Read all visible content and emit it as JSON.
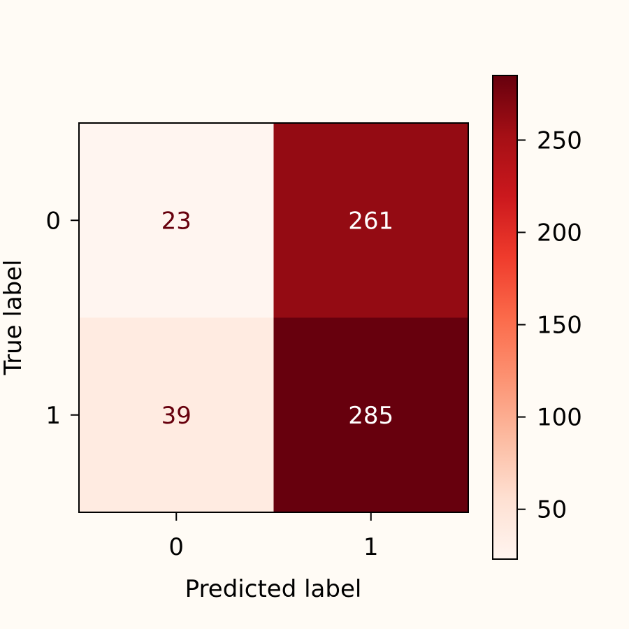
{
  "chart_data": {
    "type": "heatmap",
    "title": "",
    "xlabel": "Predicted label",
    "ylabel": "True label",
    "x_categories": [
      "0",
      "1"
    ],
    "y_categories": [
      "0",
      "1"
    ],
    "matrix": [
      [
        23,
        261
      ],
      [
        39,
        285
      ]
    ],
    "colormap": "Reds",
    "color_range": [
      23,
      285
    ],
    "colorbar_ticks": [
      50,
      100,
      150,
      200,
      250
    ],
    "colorbar_tick_labels": [
      "50",
      "100",
      "150",
      "200",
      "250"
    ],
    "text_colors": {
      "light_cell": "#67000d",
      "dark_cell": "#ffffff"
    },
    "grid": false
  }
}
